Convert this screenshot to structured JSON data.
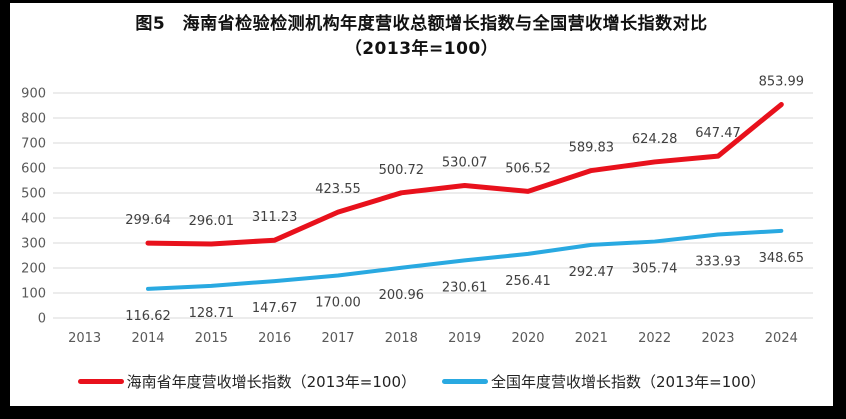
{
  "title": {
    "line1": "图5　海南省检验检测机构年度营收总额增长指数与全国营收增长指数对比",
    "line2": "（2013年=100）"
  },
  "chart_data": {
    "type": "line",
    "title": "图5 海南省检验检测机构年度营收总额增长指数与全国营收增长指数对比（2013年=100）",
    "categories": [
      "2013",
      "2014",
      "2015",
      "2016",
      "2017",
      "2018",
      "2019",
      "2020",
      "2021",
      "2022",
      "2023",
      "2024"
    ],
    "series": [
      {
        "name": "海南省年度营收增长指数（2013年=100）",
        "color": "#e8111c",
        "label_position": "above",
        "values": [
          null,
          299.64,
          296.01,
          311.23,
          423.55,
          500.72,
          530.07,
          506.52,
          589.83,
          624.28,
          647.47,
          853.99
        ]
      },
      {
        "name": "全国年度营收增长指数（2013年=100）",
        "color": "#29a9e1",
        "label_position": "below",
        "values": [
          null,
          116.62,
          128.71,
          147.67,
          170.0,
          200.96,
          230.61,
          256.41,
          292.47,
          305.74,
          333.93,
          348.65
        ]
      }
    ],
    "ylim": [
      0,
      900
    ],
    "yticks": [
      "0",
      "100",
      "200",
      "300",
      "400",
      "500",
      "600",
      "700",
      "800",
      "900"
    ],
    "value_label_decimals": 2,
    "grid": true,
    "gridline_color": "#d9d9d9",
    "legend_position": "bottom"
  }
}
